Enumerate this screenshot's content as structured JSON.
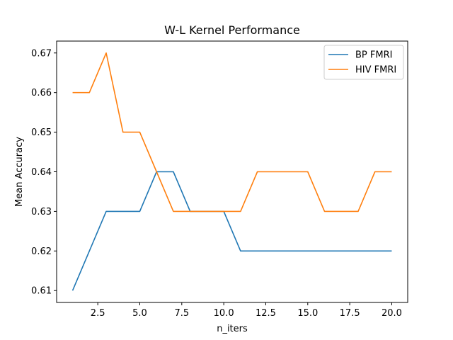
{
  "chart_data": {
    "type": "line",
    "title": "W-L Kernel Performance",
    "xlabel": "n_iters",
    "ylabel": "Mean Accuracy",
    "x": [
      1,
      2,
      3,
      4,
      5,
      6,
      7,
      8,
      9,
      10,
      11,
      12,
      13,
      14,
      15,
      16,
      17,
      18,
      19,
      20
    ],
    "xlim": [
      0.05,
      20.95
    ],
    "ylim": [
      0.607,
      0.673
    ],
    "xticks": [
      2.5,
      5.0,
      7.5,
      10.0,
      12.5,
      15.0,
      17.5,
      20.0
    ],
    "xtick_labels": [
      "2.5",
      "5.0",
      "7.5",
      "10.0",
      "12.5",
      "15.0",
      "17.5",
      "20.0"
    ],
    "yticks": [
      0.61,
      0.62,
      0.63,
      0.64,
      0.65,
      0.66,
      0.67
    ],
    "ytick_labels": [
      "0.61",
      "0.62",
      "0.63",
      "0.64",
      "0.65",
      "0.66",
      "0.67"
    ],
    "grid": false,
    "legend_position": "top-right",
    "series": [
      {
        "name": "BP FMRI",
        "color": "#1f77b4",
        "values": [
          0.61,
          0.62,
          0.63,
          0.63,
          0.63,
          0.64,
          0.64,
          0.63,
          0.63,
          0.63,
          0.62,
          0.62,
          0.62,
          0.62,
          0.62,
          0.62,
          0.62,
          0.62,
          0.62,
          0.62
        ]
      },
      {
        "name": "HIV FMRI",
        "color": "#ff7f0e",
        "values": [
          0.66,
          0.66,
          0.67,
          0.65,
          0.65,
          0.64,
          0.63,
          0.63,
          0.63,
          0.63,
          0.63,
          0.64,
          0.64,
          0.64,
          0.64,
          0.63,
          0.63,
          0.63,
          0.64,
          0.64
        ]
      }
    ]
  }
}
